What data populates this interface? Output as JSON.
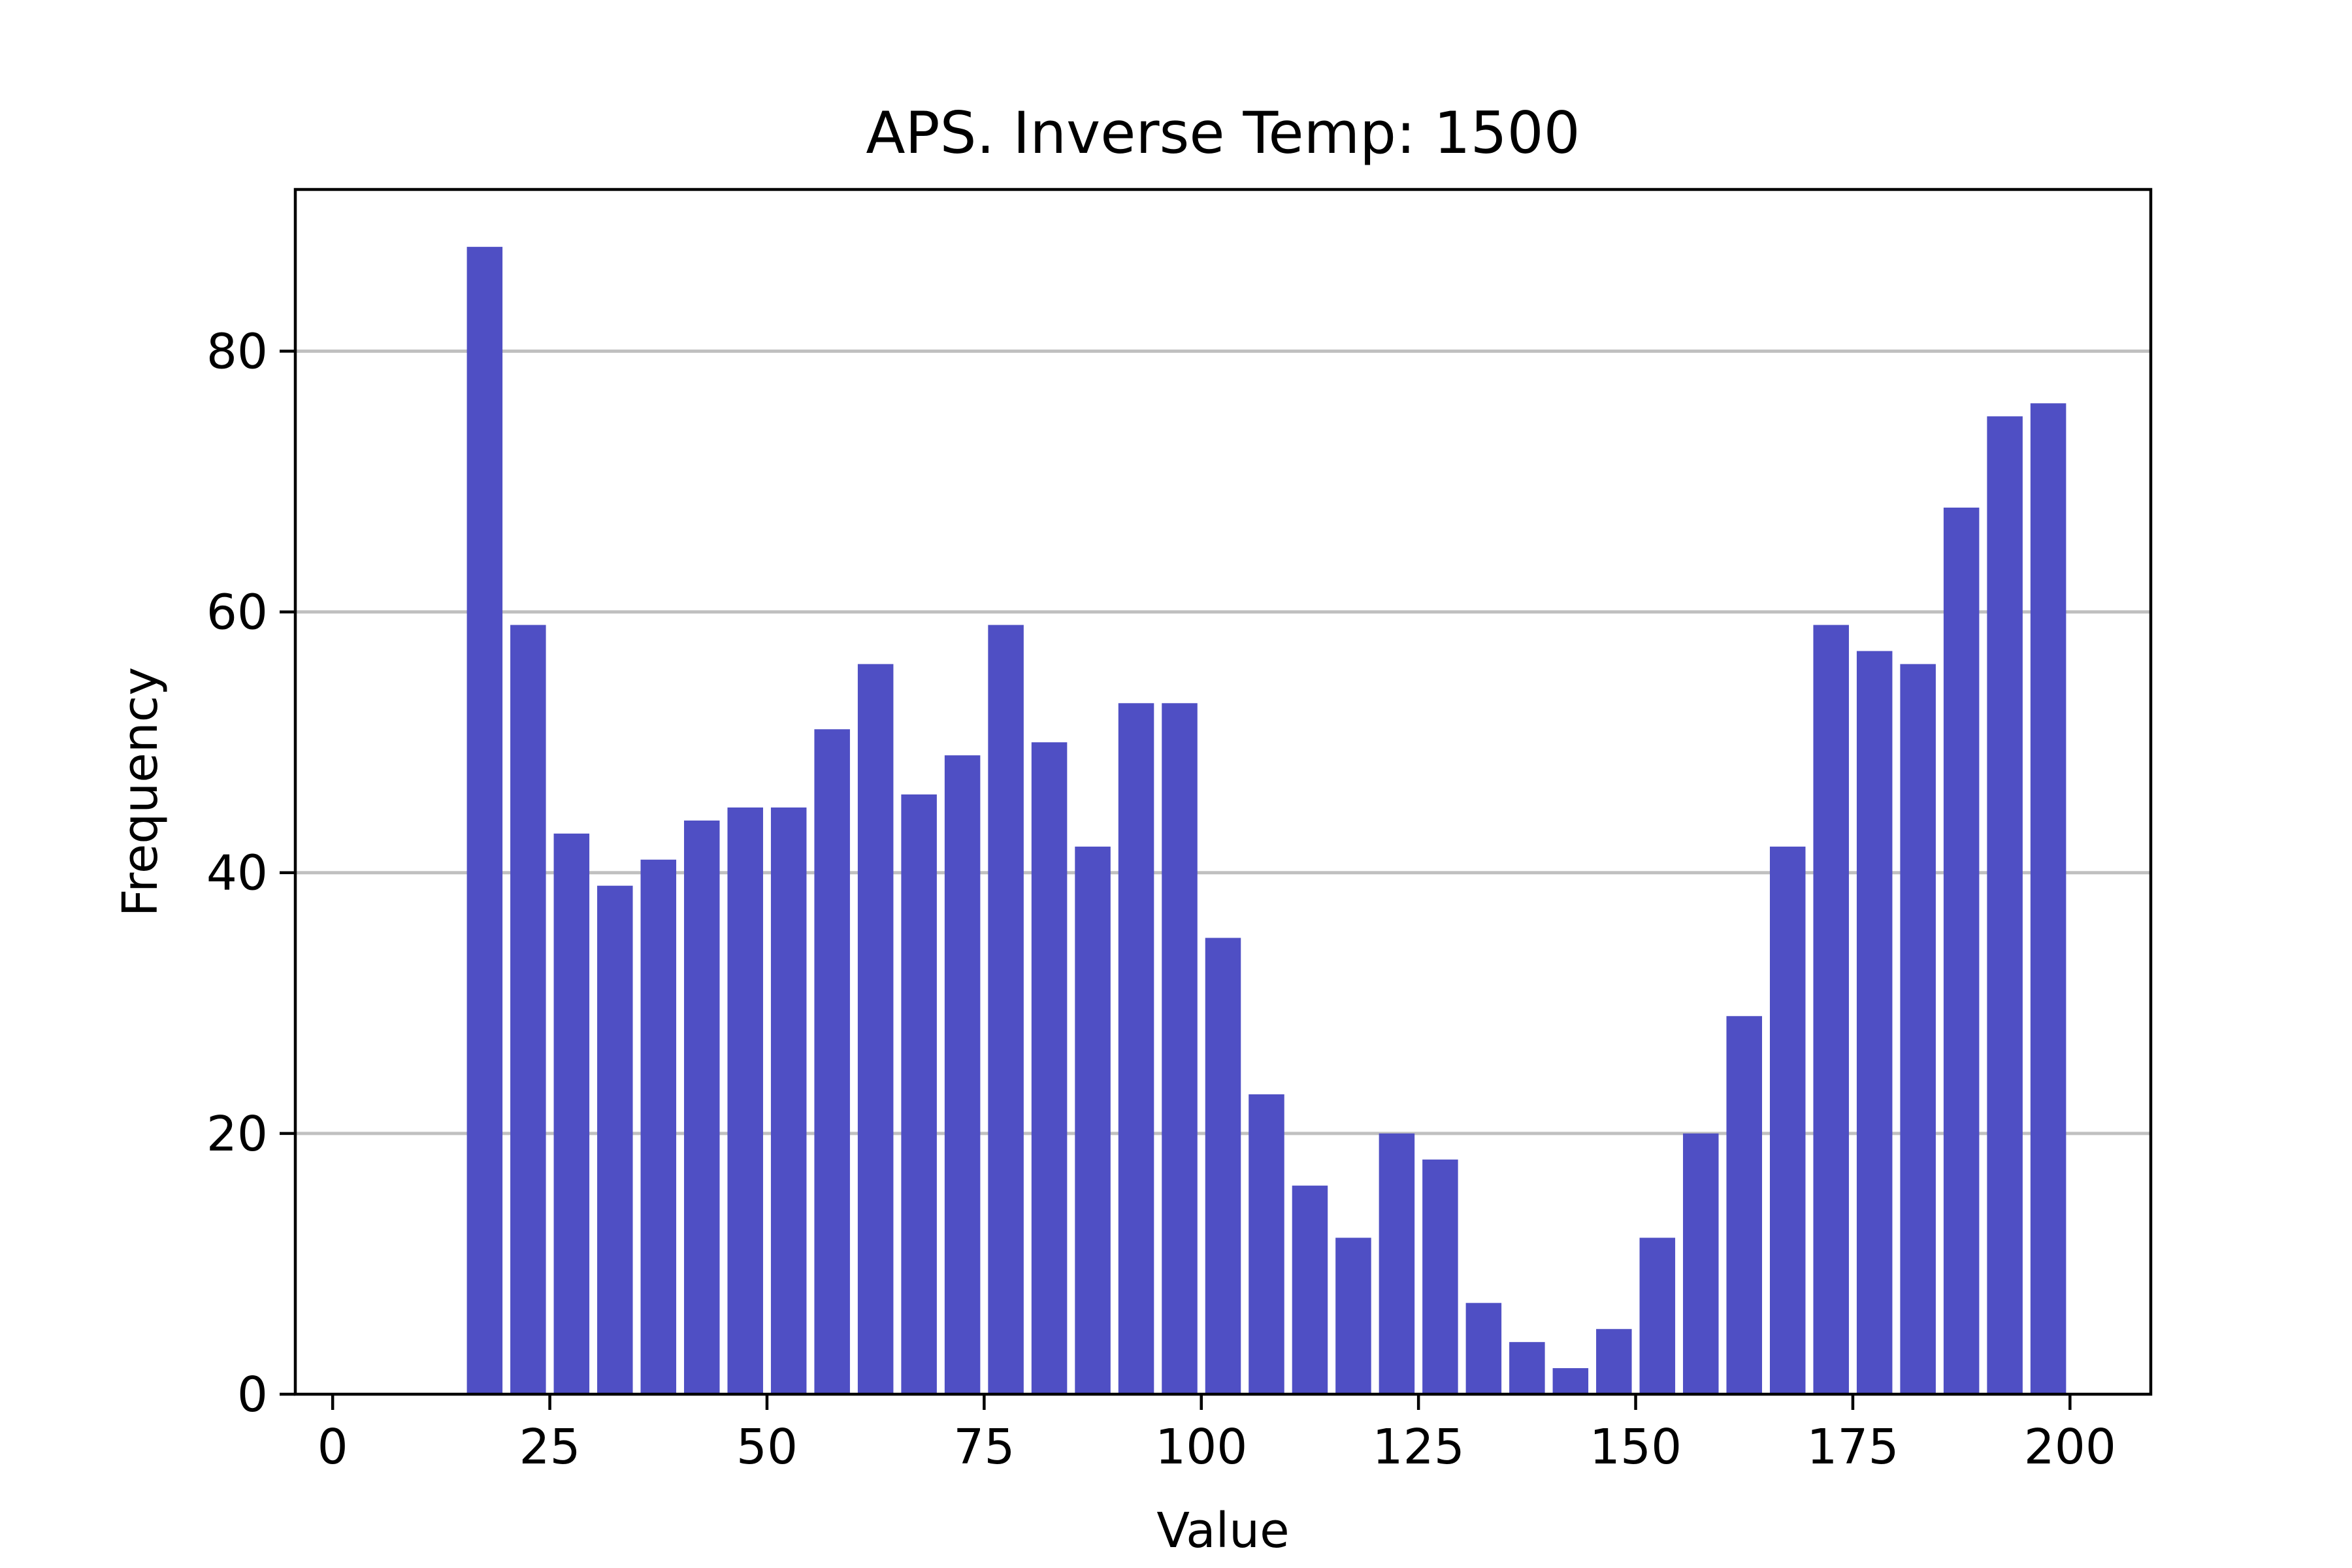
{
  "chart_data": {
    "type": "bar",
    "title": "APS. Inverse Temp: 1500",
    "xlabel": "Value",
    "ylabel": "Frequency",
    "xlim": [
      -4.3,
      209.3
    ],
    "ylim": [
      0,
      92.4
    ],
    "xticks": [
      0,
      25,
      50,
      75,
      100,
      125,
      150,
      175,
      200
    ],
    "yticks": [
      0,
      20,
      40,
      60,
      80
    ],
    "grid": "horizontal",
    "bar_width": 4.1,
    "color": "#4f4fc4",
    "x": [
      17.5,
      22.5,
      27.5,
      32.5,
      37.5,
      42.5,
      47.5,
      52.5,
      57.5,
      62.5,
      67.5,
      72.5,
      77.5,
      82.5,
      87.5,
      92.5,
      97.5,
      102.5,
      107.5,
      112.5,
      117.5,
      122.5,
      127.5,
      132.5,
      137.5,
      142.5,
      147.5,
      152.5,
      157.5,
      162.5,
      167.5,
      172.5,
      177.5,
      182.5,
      187.5,
      192.5,
      197.5
    ],
    "values": [
      88,
      59,
      43,
      39,
      41,
      44,
      45,
      45,
      51,
      56,
      46,
      49,
      59,
      50,
      42,
      53,
      53,
      35,
      23,
      16,
      12,
      20,
      18,
      7,
      4,
      2,
      5,
      12,
      20,
      29,
      42,
      59,
      57,
      56,
      68,
      75,
      76
    ]
  }
}
